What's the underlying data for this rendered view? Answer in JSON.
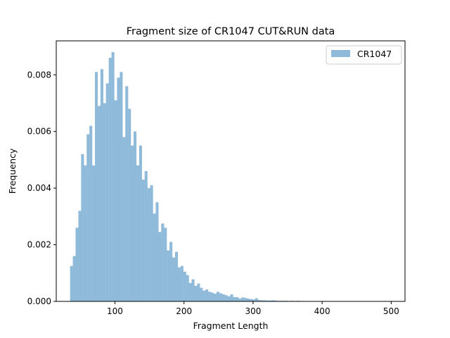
{
  "chart_data": {
    "type": "bar",
    "title": "Fragment size of CR1047 CUT&RUN data",
    "xlabel": "Fragment Length",
    "ylabel": "Frequency",
    "xlim": [
      15,
      520
    ],
    "ylim": [
      0,
      0.0092
    ],
    "xticks": [
      100,
      200,
      300,
      400,
      500
    ],
    "xtick_labels": [
      "100",
      "200",
      "300",
      "400",
      "500"
    ],
    "yticks": [
      0,
      0.002,
      0.004,
      0.006,
      0.008
    ],
    "ytick_labels": [
      "0.000",
      "0.002",
      "0.004",
      "0.006",
      "0.008"
    ],
    "grid": false,
    "legend": {
      "position": "top-right",
      "entries": [
        "CR1047"
      ]
    },
    "bin_start": 35,
    "bin_width": 4,
    "series": [
      {
        "name": "CR1047",
        "color": "#8fbad9",
        "values": [
          0.00125,
          0.0016,
          0.0026,
          0.0032,
          0.0052,
          0.0048,
          0.0059,
          0.0062,
          0.0048,
          0.0081,
          0.0069,
          0.0082,
          0.007,
          0.0077,
          0.0086,
          0.0088,
          0.0071,
          0.0079,
          0.0081,
          0.0058,
          0.0076,
          0.0068,
          0.0055,
          0.006,
          0.0048,
          0.0055,
          0.0043,
          0.0046,
          0.004,
          0.0041,
          0.0031,
          0.0035,
          0.00245,
          0.00275,
          0.0026,
          0.0018,
          0.0021,
          0.00155,
          0.00175,
          0.0012,
          0.00125,
          0.00105,
          0.00093,
          0.00065,
          0.00078,
          0.00055,
          0.00063,
          0.00048,
          0.00038,
          0.00042,
          0.00034,
          0.00031,
          0.00027,
          0.00034,
          0.00029,
          0.00025,
          0.00022,
          0.00018,
          0.00025,
          0.00015,
          0.00015,
          0.0001,
          0.00014,
          0.00012,
          0.0001,
          8e-05,
          7e-05,
          0.00011,
          5e-05,
          4e-05,
          4e-05,
          3e-05,
          3e-05,
          4e-05,
          3e-05,
          2e-05,
          2e-05,
          2e-05,
          2e-05,
          1e-05,
          2e-05,
          1e-05,
          2e-05,
          1e-05,
          1e-05,
          1e-05,
          1e-05,
          1e-05,
          1e-05,
          1e-05,
          1e-05,
          1e-05,
          5e-06,
          5e-06,
          5e-06,
          5e-06,
          5e-06,
          5e-06,
          5e-06,
          5e-06,
          5e-06,
          5e-06,
          5e-06,
          5e-06,
          5e-06,
          5e-06,
          5e-06,
          5e-06,
          5e-06,
          5e-06,
          5e-06,
          5e-06,
          5e-06,
          5e-06
        ]
      }
    ]
  }
}
